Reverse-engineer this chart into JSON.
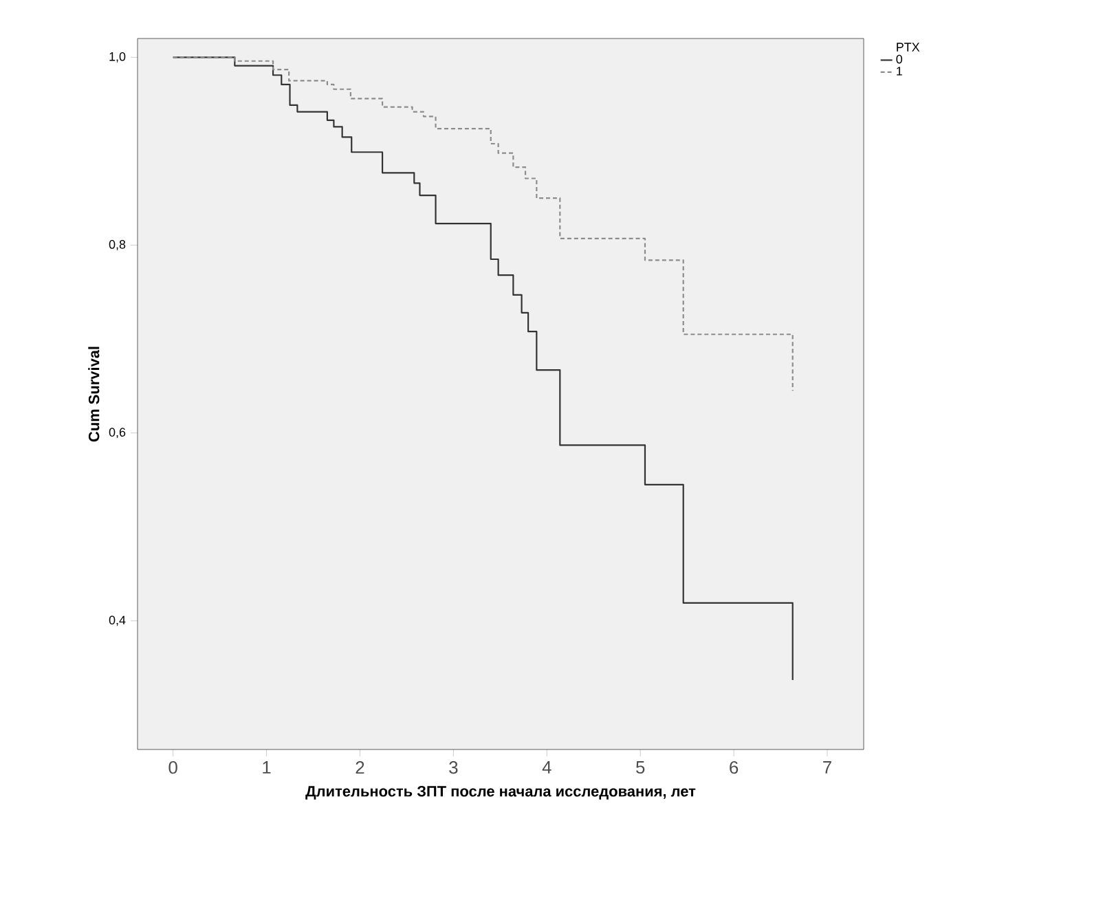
{
  "chart_data": {
    "type": "step",
    "xlabel": "Длительность ЗПТ после начала исследования, лет",
    "ylabel": "Cum Survival",
    "legend_title": "PTX",
    "legend": "top right",
    "xlim": [
      -0.38,
      7.39
    ],
    "ylim": [
      0.263,
      1.02
    ],
    "xticks": [
      0,
      1,
      2,
      3,
      4,
      5,
      6,
      7
    ],
    "yticks": [
      {
        "value": 0.4,
        "label": "0,4"
      },
      {
        "value": 0.6,
        "label": "0,6"
      },
      {
        "value": 0.8,
        "label": "0,8"
      },
      {
        "value": 1.0,
        "label": "1,0"
      }
    ],
    "grid": false,
    "series": [
      {
        "name": "0",
        "color": "#333333",
        "line_style": "solid",
        "x": [
          0,
          0.66,
          1.07,
          1.16,
          1.25,
          1.33,
          1.65,
          1.72,
          1.81,
          1.91,
          2.24,
          2.58,
          2.64,
          2.81,
          3.4,
          3.48,
          3.64,
          3.73,
          3.8,
          3.89,
          4.14,
          5.05,
          5.46,
          6.63
        ],
        "values": [
          1.0,
          0.991,
          0.981,
          0.971,
          0.949,
          0.942,
          0.933,
          0.926,
          0.915,
          0.899,
          0.877,
          0.866,
          0.853,
          0.823,
          0.785,
          0.768,
          0.747,
          0.728,
          0.708,
          0.667,
          0.587,
          0.545,
          0.419,
          0.337
        ]
      },
      {
        "name": "1",
        "color": "#8c8c8c",
        "line_style": "dashed",
        "x": [
          0,
          0.66,
          1.07,
          1.24,
          1.65,
          1.72,
          1.9,
          2.24,
          2.56,
          2.68,
          2.81,
          3.4,
          3.48,
          3.64,
          3.77,
          3.89,
          4.14,
          5.05,
          5.46,
          6.63
        ],
        "values": [
          1.0,
          0.996,
          0.987,
          0.975,
          0.971,
          0.966,
          0.956,
          0.947,
          0.942,
          0.937,
          0.924,
          0.908,
          0.898,
          0.883,
          0.871,
          0.85,
          0.807,
          0.784,
          0.705,
          0.645
        ]
      }
    ]
  }
}
